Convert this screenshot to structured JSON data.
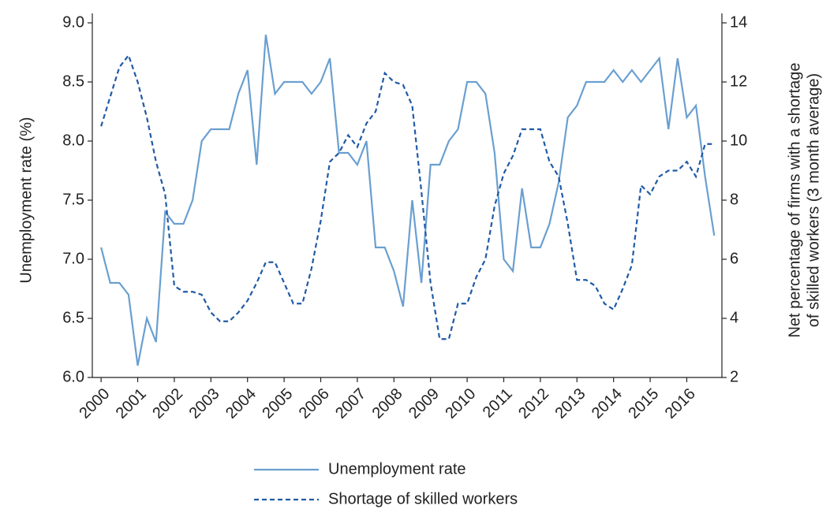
{
  "chart_data": {
    "type": "line",
    "ylabel": "Unemployment rate (%)",
    "y2label": [
      "Net percentage of firms with a shortage",
      "of skilled workers (3 month average)"
    ],
    "x": [
      2000,
      2000.25,
      2000.5,
      2000.75,
      2001,
      2001.25,
      2001.5,
      2001.75,
      2002,
      2002.25,
      2002.5,
      2002.75,
      2003,
      2003.25,
      2003.5,
      2003.75,
      2004,
      2004.25,
      2004.5,
      2004.75,
      2005,
      2005.25,
      2005.5,
      2005.75,
      2006,
      2006.25,
      2006.5,
      2006.75,
      2007,
      2007.25,
      2007.5,
      2007.75,
      2008,
      2008.25,
      2008.5,
      2008.75,
      2009,
      2009.25,
      2009.5,
      2009.75,
      2010,
      2010.25,
      2010.5,
      2010.75,
      2011,
      2011.25,
      2011.5,
      2011.75,
      2012,
      2012.25,
      2012.5,
      2012.75,
      2013,
      2013.25,
      2013.5,
      2013.75,
      2014,
      2014.25,
      2014.5,
      2014.75,
      2015,
      2015.25,
      2015.5,
      2015.75,
      2016,
      2016.25,
      2016.5,
      2016.75
    ],
    "series": [
      {
        "name": "Unemployment rate",
        "color": "#6a9fd0",
        "dash": false,
        "values": [
          7.1,
          6.8,
          6.8,
          6.7,
          6.1,
          6.5,
          6.3,
          7.4,
          7.3,
          7.3,
          7.5,
          8.0,
          8.1,
          8.1,
          8.1,
          8.4,
          8.6,
          7.8,
          8.9,
          8.4,
          8.5,
          8.5,
          8.5,
          8.4,
          8.5,
          8.7,
          7.9,
          7.9,
          7.8,
          8.0,
          7.1,
          7.1,
          6.9,
          6.6,
          7.5,
          6.8,
          7.8,
          7.8,
          8.0,
          8.1,
          8.5,
          8.5,
          8.4,
          7.9,
          7.0,
          6.9,
          7.6,
          7.1,
          7.1,
          7.3,
          7.65,
          8.2,
          8.3,
          8.5,
          8.5,
          8.5,
          8.6,
          8.5,
          8.6,
          8.5,
          8.6,
          8.7,
          8.1,
          8.7,
          8.2,
          8.3,
          7.7,
          7.2
        ]
      },
      {
        "name": "Shortage of skilled workers",
        "color": "#1f5aa6",
        "dash": true,
        "axis": "y2",
        "values": [
          10.5,
          11.5,
          12.5,
          12.9,
          12.0,
          10.8,
          9.3,
          8.2,
          5.1,
          4.9,
          4.9,
          4.8,
          4.2,
          3.9,
          3.9,
          4.2,
          4.6,
          5.2,
          5.9,
          5.9,
          5.2,
          4.5,
          4.5,
          5.7,
          7.3,
          9.3,
          9.6,
          10.2,
          9.8,
          10.6,
          11.0,
          12.3,
          12.0,
          11.9,
          11.2,
          8.3,
          5.2,
          3.3,
          3.3,
          4.5,
          4.5,
          5.4,
          6.0,
          7.8,
          8.9,
          9.5,
          10.4,
          10.4,
          10.4,
          9.3,
          8.8,
          7.2,
          5.3,
          5.3,
          5.1,
          4.5,
          4.3,
          5.0,
          5.8,
          8.5,
          8.2,
          8.8,
          9.0,
          9.0,
          9.3,
          8.8,
          9.9,
          9.9
        ]
      }
    ],
    "xlim": [
      1999.76,
      2016.96
    ],
    "xticks": [
      2000,
      2001,
      2002,
      2003,
      2004,
      2005,
      2006,
      2007,
      2008,
      2009,
      2010,
      2011,
      2012,
      2013,
      2014,
      2015,
      2016
    ],
    "ylim": [
      6,
      9
    ],
    "yticks": [
      {
        "value": 6,
        "label": "6.0"
      },
      {
        "value": 6.5,
        "label": "6.5"
      },
      {
        "value": 7,
        "label": "7.0"
      },
      {
        "value": 7.5,
        "label": "7.5"
      },
      {
        "value": 8,
        "label": "8.0"
      },
      {
        "value": 8.5,
        "label": "8.5"
      },
      {
        "value": 9,
        "label": "9.0"
      }
    ],
    "y2lim": [
      2,
      14
    ],
    "y2ticks": [
      2,
      4,
      6,
      8,
      10,
      12,
      14
    ],
    "legend": "bottom"
  }
}
